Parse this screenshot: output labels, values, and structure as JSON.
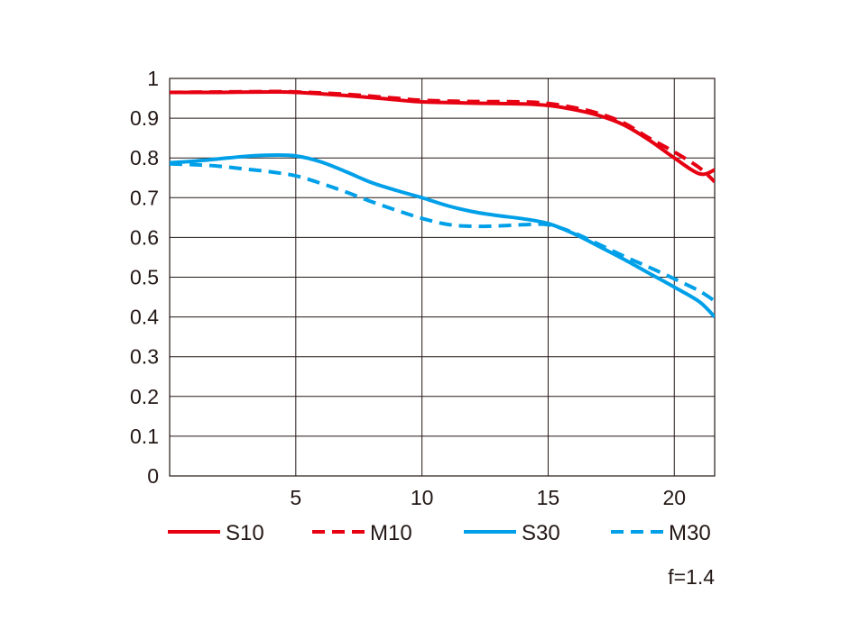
{
  "chart_data": {
    "type": "line",
    "title": "",
    "xlabel": "",
    "ylabel": "",
    "xlim": [
      0,
      21.6
    ],
    "ylim": [
      0,
      1
    ],
    "x_ticks": [
      5,
      10,
      15,
      20
    ],
    "x_tick_labels": [
      "5",
      "10",
      "15",
      "20"
    ],
    "y_ticks": [
      0,
      0.1,
      0.2,
      0.3,
      0.4,
      0.5,
      0.6,
      0.7,
      0.8,
      0.9,
      1
    ],
    "y_tick_labels": [
      "0",
      "0.1",
      "0.2",
      "0.3",
      "0.4",
      "0.5",
      "0.6",
      "0.7",
      "0.8",
      "0.9",
      "1"
    ],
    "grid": true,
    "legend_position": "bottom",
    "series": [
      {
        "name": "S10",
        "color": "#e60012",
        "style": "solid",
        "points": [
          [
            0,
            0.965
          ],
          [
            2,
            0.965
          ],
          [
            4,
            0.966
          ],
          [
            5,
            0.965
          ],
          [
            7,
            0.957
          ],
          [
            9,
            0.946
          ],
          [
            10,
            0.941
          ],
          [
            12,
            0.938
          ],
          [
            14,
            0.936
          ],
          [
            15,
            0.932
          ],
          [
            16,
            0.922
          ],
          [
            17,
            0.907
          ],
          [
            18,
            0.883
          ],
          [
            19,
            0.845
          ],
          [
            20,
            0.8
          ],
          [
            21,
            0.76
          ],
          [
            21.6,
            0.77
          ]
        ]
      },
      {
        "name": "M10",
        "color": "#e60012",
        "style": "dashed",
        "points": [
          [
            0,
            0.965
          ],
          [
            2,
            0.966
          ],
          [
            4,
            0.967
          ],
          [
            5,
            0.966
          ],
          [
            7,
            0.96
          ],
          [
            9,
            0.95
          ],
          [
            10,
            0.945
          ],
          [
            12,
            0.942
          ],
          [
            14,
            0.941
          ],
          [
            15,
            0.937
          ],
          [
            16,
            0.927
          ],
          [
            17,
            0.912
          ],
          [
            18,
            0.888
          ],
          [
            19,
            0.85
          ],
          [
            20,
            0.815
          ],
          [
            21,
            0.775
          ],
          [
            21.6,
            0.74
          ]
        ]
      },
      {
        "name": "S30",
        "color": "#00a0e9",
        "style": "solid",
        "points": [
          [
            0,
            0.788
          ],
          [
            1,
            0.792
          ],
          [
            2,
            0.798
          ],
          [
            3,
            0.804
          ],
          [
            4,
            0.807
          ],
          [
            5,
            0.805
          ],
          [
            6,
            0.79
          ],
          [
            7,
            0.765
          ],
          [
            8,
            0.738
          ],
          [
            9,
            0.718
          ],
          [
            10,
            0.7
          ],
          [
            11,
            0.68
          ],
          [
            12,
            0.665
          ],
          [
            13,
            0.655
          ],
          [
            14,
            0.647
          ],
          [
            15,
            0.635
          ],
          [
            16,
            0.61
          ],
          [
            17,
            0.578
          ],
          [
            18,
            0.545
          ],
          [
            19,
            0.51
          ],
          [
            20,
            0.475
          ],
          [
            21,
            0.438
          ],
          [
            21.6,
            0.4
          ]
        ]
      },
      {
        "name": "M30",
        "color": "#00a0e9",
        "style": "dashed",
        "points": [
          [
            0,
            0.785
          ],
          [
            1,
            0.783
          ],
          [
            2,
            0.779
          ],
          [
            3,
            0.772
          ],
          [
            4,
            0.765
          ],
          [
            5,
            0.755
          ],
          [
            6,
            0.736
          ],
          [
            7,
            0.714
          ],
          [
            8,
            0.69
          ],
          [
            9,
            0.668
          ],
          [
            10,
            0.648
          ],
          [
            11,
            0.633
          ],
          [
            12,
            0.628
          ],
          [
            13,
            0.629
          ],
          [
            14,
            0.632
          ],
          [
            15,
            0.632
          ],
          [
            16,
            0.612
          ],
          [
            17,
            0.583
          ],
          [
            18,
            0.553
          ],
          [
            19,
            0.525
          ],
          [
            20,
            0.496
          ],
          [
            21,
            0.465
          ],
          [
            21.6,
            0.44
          ]
        ]
      }
    ],
    "annotation": "f=1.4"
  }
}
